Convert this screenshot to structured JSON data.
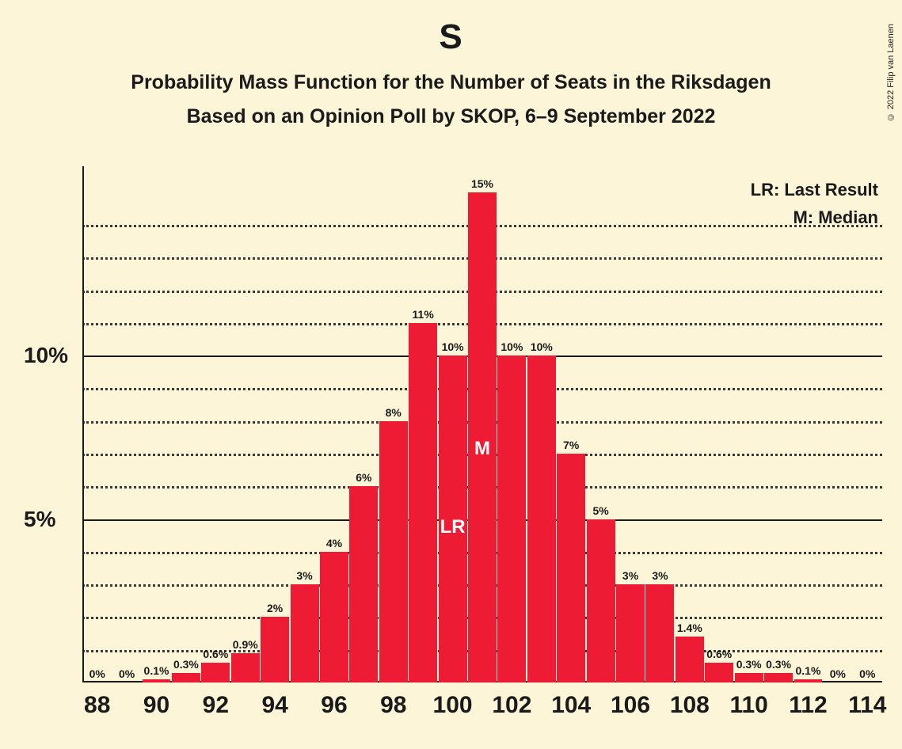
{
  "copyright": "© 2022 Filip van Laenen",
  "title": "S",
  "subtitle1": "Probability Mass Function for the Number of Seats in the Riksdagen",
  "subtitle2": "Based on an Opinion Poll by SKOP, 6–9 September 2022",
  "legend": {
    "lr": "LR: Last Result",
    "m": "M: Median"
  },
  "chart": {
    "type": "bar",
    "bar_color": "#ed1b34",
    "background_color": "#fcf5d8",
    "grid_color": "#1a1a1a",
    "text_color": "#1a1a1a",
    "ylim": [
      0,
      15.5
    ],
    "y_major_ticks": [
      5,
      10
    ],
    "y_minor_ticks": [
      1,
      2,
      3,
      4,
      6,
      7,
      8,
      9,
      11,
      12,
      13,
      14
    ],
    "x_start": 88,
    "x_end": 114,
    "x_tick_step": 2,
    "bar_gap_ratio": 0.04,
    "bars": [
      {
        "x": 88,
        "value": 0,
        "label": "0%"
      },
      {
        "x": 89,
        "value": 0,
        "label": "0%"
      },
      {
        "x": 90,
        "value": 0.1,
        "label": "0.1%"
      },
      {
        "x": 91,
        "value": 0.3,
        "label": "0.3%"
      },
      {
        "x": 92,
        "value": 0.6,
        "label": "0.6%"
      },
      {
        "x": 93,
        "value": 0.9,
        "label": "0.9%"
      },
      {
        "x": 94,
        "value": 2,
        "label": "2%"
      },
      {
        "x": 95,
        "value": 3,
        "label": "3%"
      },
      {
        "x": 96,
        "value": 4,
        "label": "4%"
      },
      {
        "x": 97,
        "value": 6,
        "label": "6%"
      },
      {
        "x": 98,
        "value": 8,
        "label": "8%"
      },
      {
        "x": 99,
        "value": 11,
        "label": "11%"
      },
      {
        "x": 100,
        "value": 10,
        "label": "10%",
        "mark": "LR",
        "mark_pos": 0.48
      },
      {
        "x": 101,
        "value": 15,
        "label": "15%",
        "mark": "M",
        "mark_pos": 0.48
      },
      {
        "x": 102,
        "value": 10,
        "label": "10%"
      },
      {
        "x": 103,
        "value": 10,
        "label": "10%"
      },
      {
        "x": 104,
        "value": 7,
        "label": "7%"
      },
      {
        "x": 105,
        "value": 5,
        "label": "5%"
      },
      {
        "x": 106,
        "value": 3,
        "label": "3%"
      },
      {
        "x": 107,
        "value": 3,
        "label": "3%"
      },
      {
        "x": 108,
        "value": 1.4,
        "label": "1.4%"
      },
      {
        "x": 109,
        "value": 0.6,
        "label": "0.6%"
      },
      {
        "x": 110,
        "value": 0.3,
        "label": "0.3%"
      },
      {
        "x": 111,
        "value": 0.3,
        "label": "0.3%"
      },
      {
        "x": 112,
        "value": 0.1,
        "label": "0.1%"
      },
      {
        "x": 113,
        "value": 0,
        "label": "0%"
      },
      {
        "x": 114,
        "value": 0,
        "label": "0%"
      }
    ]
  }
}
